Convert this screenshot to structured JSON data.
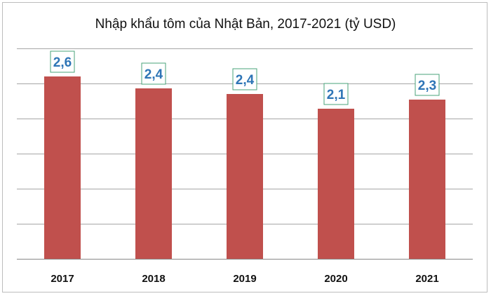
{
  "chart_data": {
    "type": "bar",
    "title": "Nhập khẩu tôm của Nhật Bản, 2017-2021  (tỷ USD)",
    "categories": [
      "2017",
      "2018",
      "2019",
      "2020",
      "2021"
    ],
    "values": [
      2.6,
      2.43,
      2.35,
      2.14,
      2.27
    ],
    "data_labels": [
      "2,6",
      "2,4",
      "2,4",
      "2,1",
      "2,3"
    ],
    "xlabel": "",
    "ylabel": "",
    "ylim": [
      0,
      3
    ],
    "ygrid_step": 0.5,
    "grid": true,
    "legend": "none",
    "colors": {
      "bar": "#c0504d",
      "label": "#2e75b6",
      "label_border": "#4aa37a",
      "grid": "#a6a6a6"
    }
  }
}
